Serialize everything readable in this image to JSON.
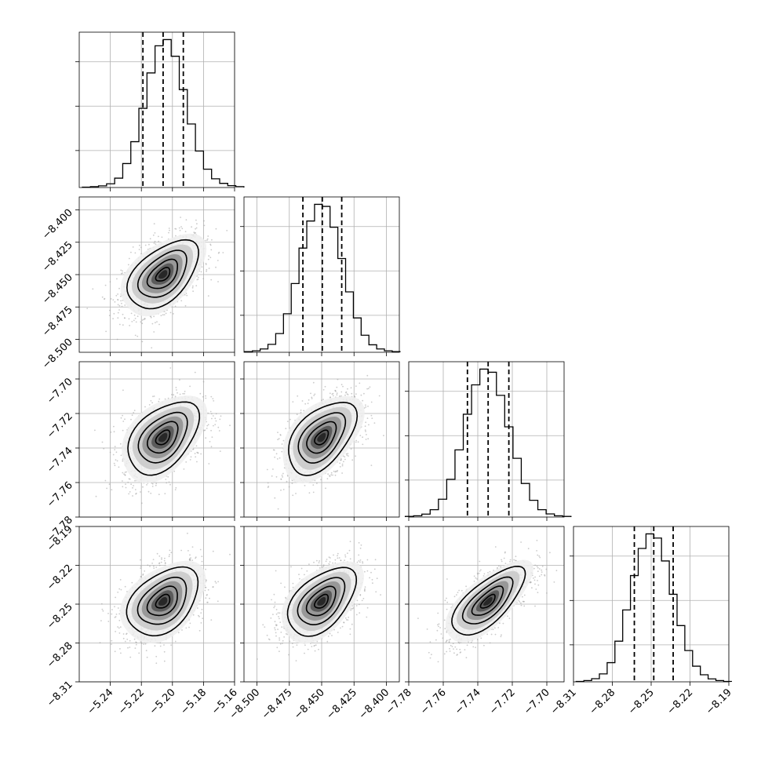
{
  "chart_data": {
    "type": "corner",
    "title": "",
    "grid": true,
    "parameters": [
      {
        "index": 0,
        "range": [
          -5.26,
          -5.16
        ],
        "ticks": [
          -5.24,
          -5.22,
          -5.2,
          -5.18,
          -5.16
        ],
        "tick_labels": [
          "−5.24",
          "−5.22",
          "−5.20",
          "−5.18",
          "−5.16"
        ],
        "quantiles": [
          -5.219,
          -5.206,
          -5.193
        ],
        "hist": [
          0.2,
          0.4,
          0.8,
          1.8,
          4.5,
          11.5,
          22.0,
          38.0,
          55.0,
          68.0,
          71.0,
          63.0,
          47.0,
          30.5,
          17.5,
          8.8,
          4.2,
          2.0,
          0.9,
          0.4
        ]
      },
      {
        "index": 1,
        "range": [
          -8.51,
          -8.39
        ],
        "ticks": [
          -8.5,
          -8.475,
          -8.45,
          -8.425,
          -8.4
        ],
        "tick_labels": [
          "−8.500",
          "−8.475",
          "−8.450",
          "−8.425",
          "−8.400"
        ],
        "quantiles": [
          -8.4645,
          -8.4495,
          -8.4345
        ],
        "hist": [
          0.3,
          0.7,
          1.6,
          3.8,
          9.0,
          18.5,
          33.0,
          50.0,
          63.0,
          71.0,
          70.0,
          60.0,
          45.0,
          29.0,
          16.5,
          8.2,
          3.6,
          1.6,
          0.7,
          0.3
        ]
      },
      {
        "index": 2,
        "range": [
          -7.78,
          -7.69
        ],
        "ticks": [
          -7.78,
          -7.76,
          -7.74,
          -7.72,
          -7.7
        ],
        "tick_labels": [
          "−7.78",
          "−7.76",
          "−7.74",
          "−7.72",
          "−7.70"
        ],
        "quantiles": [
          -7.746,
          -7.734,
          -7.722
        ],
        "hist": [
          0.3,
          0.6,
          1.4,
          3.5,
          8.5,
          18.0,
          32.0,
          49.0,
          63.0,
          70.5,
          69.0,
          58.0,
          43.0,
          28.0,
          16.0,
          8.0,
          3.5,
          1.5,
          0.6,
          0.3
        ]
      },
      {
        "index": 3,
        "range": [
          -8.31,
          -8.19
        ],
        "ticks": [
          -8.31,
          -8.28,
          -8.25,
          -8.22,
          -8.19
        ],
        "tick_labels": [
          "−8.31",
          "−8.28",
          "−8.25",
          "−8.22",
          "−8.19"
        ],
        "quantiles": [
          -8.263,
          -8.248,
          -8.233
        ],
        "hist": [
          0.2,
          0.6,
          1.5,
          3.8,
          9.2,
          19.5,
          34.5,
          51.0,
          64.0,
          71.0,
          69.0,
          58.0,
          42.0,
          27.0,
          15.0,
          7.5,
          3.4,
          1.4,
          0.6,
          0.2
        ]
      }
    ],
    "pairs": [
      {
        "x_index": 0,
        "y_index": 1,
        "mean": [
          -5.206,
          -8.45
        ],
        "correlation": 0.5
      },
      {
        "x_index": 0,
        "y_index": 2,
        "mean": [
          -5.206,
          -7.734
        ],
        "correlation": 0.45
      },
      {
        "x_index": 1,
        "y_index": 2,
        "mean": [
          -8.45,
          -7.734
        ],
        "correlation": 0.5
      },
      {
        "x_index": 0,
        "y_index": 3,
        "mean": [
          -5.206,
          -8.248
        ],
        "correlation": 0.4
      },
      {
        "x_index": 1,
        "y_index": 3,
        "mean": [
          -8.45,
          -8.248
        ],
        "correlation": 0.5
      },
      {
        "x_index": 2,
        "y_index": 3,
        "mean": [
          -7.734,
          -8.248
        ],
        "correlation": 0.7
      }
    ],
    "contour_levels_sigma": [
      0.5,
      1.0,
      1.5,
      2.0
    ],
    "colors": {
      "line": "#000000",
      "grid": "#b0b0b0",
      "points": "#a0a0a0"
    }
  }
}
